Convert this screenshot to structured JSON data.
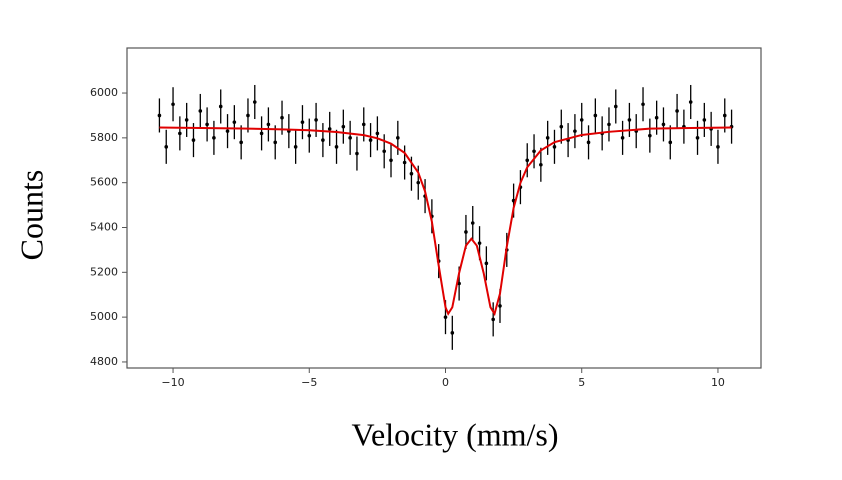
{
  "chart_data": {
    "type": "errorbar",
    "xlabel": "Velocity (mm/s)",
    "ylabel": "Counts",
    "xlim": [
      -11.69,
      11.58
    ],
    "ylim": [
      4773,
      6201
    ],
    "xticks": [
      {
        "value": -10,
        "label": "−10"
      },
      {
        "value": -5,
        "label": "−5"
      },
      0,
      5,
      10
    ],
    "yticks": [
      4800,
      5000,
      5200,
      5400,
      5600,
      5800,
      6000
    ],
    "series": [
      {
        "kind": "points",
        "color": "#000000",
        "error": 76,
        "x": [
          -10.5,
          -10.25,
          -10,
          -9.75,
          -9.5,
          -9.25,
          -9,
          -8.75,
          -8.5,
          -8.25,
          -8,
          -7.75,
          -7.5,
          -7.25,
          -7,
          -6.75,
          -6.5,
          -6.25,
          -6,
          -5.75,
          -5.5,
          -5.25,
          -5,
          -4.75,
          -4.5,
          -4.25,
          -4,
          -3.75,
          -3.5,
          -3.25,
          -3,
          -2.75,
          -2.5,
          -2.25,
          -2,
          -1.75,
          -1.5,
          -1.25,
          -1,
          -0.75,
          -0.5,
          -0.25,
          0,
          0.25,
          0.5,
          0.75,
          1,
          1.25,
          1.5,
          1.75,
          2,
          2.25,
          2.5,
          2.75,
          3,
          3.25,
          3.5,
          3.75,
          4,
          4.25,
          4.5,
          4.75,
          5,
          5.25,
          5.5,
          5.75,
          6,
          6.25,
          6.5,
          6.75,
          7,
          7.25,
          7.5,
          7.75,
          8,
          8.25,
          8.5,
          8.75,
          9,
          9.25,
          9.5,
          9.75,
          10,
          10.25,
          10.5
        ],
        "values": [
          5900,
          5760,
          5950,
          5820,
          5880,
          5790,
          5920,
          5860,
          5800,
          5940,
          5830,
          5870,
          5780,
          5900,
          5960,
          5820,
          5860,
          5780,
          5890,
          5830,
          5760,
          5870,
          5810,
          5880,
          5790,
          5840,
          5760,
          5850,
          5800,
          5730,
          5860,
          5790,
          5820,
          5740,
          5700,
          5800,
          5690,
          5640,
          5600,
          5540,
          5450,
          5250,
          5000,
          4930,
          5150,
          5380,
          5420,
          5330,
          5240,
          4990,
          5050,
          5300,
          5520,
          5580,
          5700,
          5740,
          5680,
          5800,
          5760,
          5850,
          5790,
          5830,
          5880,
          5780,
          5900,
          5820,
          5860,
          5940,
          5800,
          5880,
          5830,
          5950,
          5810,
          5890,
          5860,
          5780,
          5920,
          5850,
          5960,
          5800,
          5880,
          5840,
          5760,
          5900,
          5850
        ]
      },
      {
        "kind": "line",
        "color": "#e00000",
        "x": [
          -10.5,
          -9,
          -7.5,
          -6,
          -5,
          -4,
          -3,
          -2.5,
          -2,
          -1.5,
          -1,
          -0.75,
          -0.5,
          -0.25,
          0,
          0.1,
          0.25,
          0.5,
          0.75,
          0.95,
          1.15,
          1.4,
          1.65,
          1.8,
          2,
          2.25,
          2.5,
          2.75,
          3,
          3.5,
          4,
          5,
          6,
          7.5,
          9,
          10.5
        ],
        "values": [
          5846,
          5844,
          5842,
          5838,
          5834,
          5826,
          5812,
          5798,
          5774,
          5733,
          5645,
          5561,
          5426,
          5230,
          5044,
          5015,
          5044,
          5197,
          5319,
          5350,
          5319,
          5197,
          5044,
          5015,
          5105,
          5315,
          5487,
          5599,
          5669,
          5744,
          5781,
          5813,
          5827,
          5841,
          5844,
          5846
        ]
      }
    ]
  }
}
